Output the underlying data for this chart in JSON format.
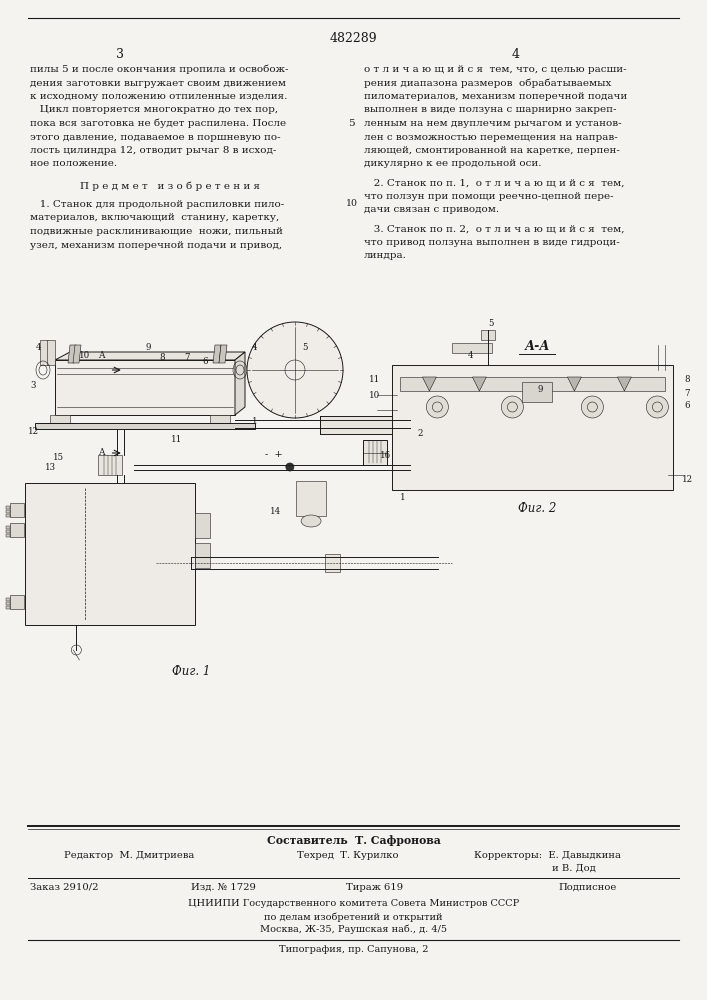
{
  "patent_number": "482289",
  "page_left": "3",
  "page_right": "4",
  "bg_color": "#f5f3ef",
  "text_color": "#1a1a1a",
  "left_column_text": [
    "пилы 5 и после окончания пропила и освобож-",
    "дения заготовки выгружает своим движением",
    "к исходному положению отпиленные изделия.",
    "   Цикл повторяется многократно до тех пор,",
    "пока вся заготовка не будет распилена. После",
    "этого давление, подаваемое в поршневую по-",
    "лость цилиндра 12, отводит рычаг 8 в исход-",
    "ное положение."
  ],
  "predmet_header": "П р е д м е т   и з о б р е т е н и я",
  "predmet_text": [
    "   1. Станок для продольной распиловки пило-",
    "материалов, включающий  станину, каретку,",
    "подвижные расклинивающие  ножи, пильный",
    "узел, механизм поперечной подачи и привод,"
  ],
  "right_column_text": [
    "о т л и ч а ю щ и й с я  тем, что, с целью расши-",
    "рения диапазона размеров  обрабатываемых",
    "пиломатериалов, механизм поперечной подачи",
    "выполнен в виде ползуна с шарнирно закреп-",
    "ленным на нем двуплечим рычагом и установ-",
    "лен с возможностью перемещения на направ-",
    "ляющей, смонтированной на каретке, перпен-",
    "дикулярно к ее продольной оси."
  ],
  "claim2_text": [
    "   2. Станок по п. 1,  о т л и ч а ю щ и й с я  тем,",
    "что ползун при помощи реечно-цепной пере-",
    "дачи связан с приводом."
  ],
  "claim3_text": [
    "   3. Станок по п. 2,  о т л и ч а ю щ и й с я  тем,",
    "что привод ползуна выполнен в виде гидроци-",
    "линдра."
  ],
  "fig1_label": "Фиг. 1",
  "fig2_label": "Фиг. 2",
  "fig_aa_label": "А-А",
  "footer_составитель": "Составитель  Т. Сафронова",
  "footer_редактор": "Редактор  М. Дмитриева",
  "footer_техред": "Техред  Т. Курилко",
  "footer_корректоры": "Корректоры:  Е. Давыдкина",
  "footer_корректоры2": "                         и В. Дод",
  "footer_заказ": "Заказ 2910/2",
  "footer_изд": "Изд. № 1729",
  "footer_тираж": "Тираж 619",
  "footer_подписное": "Подписное",
  "footer_цниипи": "ЦНИИПИ Государственного комитета Совета Министров СССР",
  "footer_по_делам": "по делам изобретений и открытий",
  "footer_москва": "Москва, Ж-35, Раушская наб., д. 4/5",
  "footer_типография": "Типография, пр. Сапунова, 2"
}
